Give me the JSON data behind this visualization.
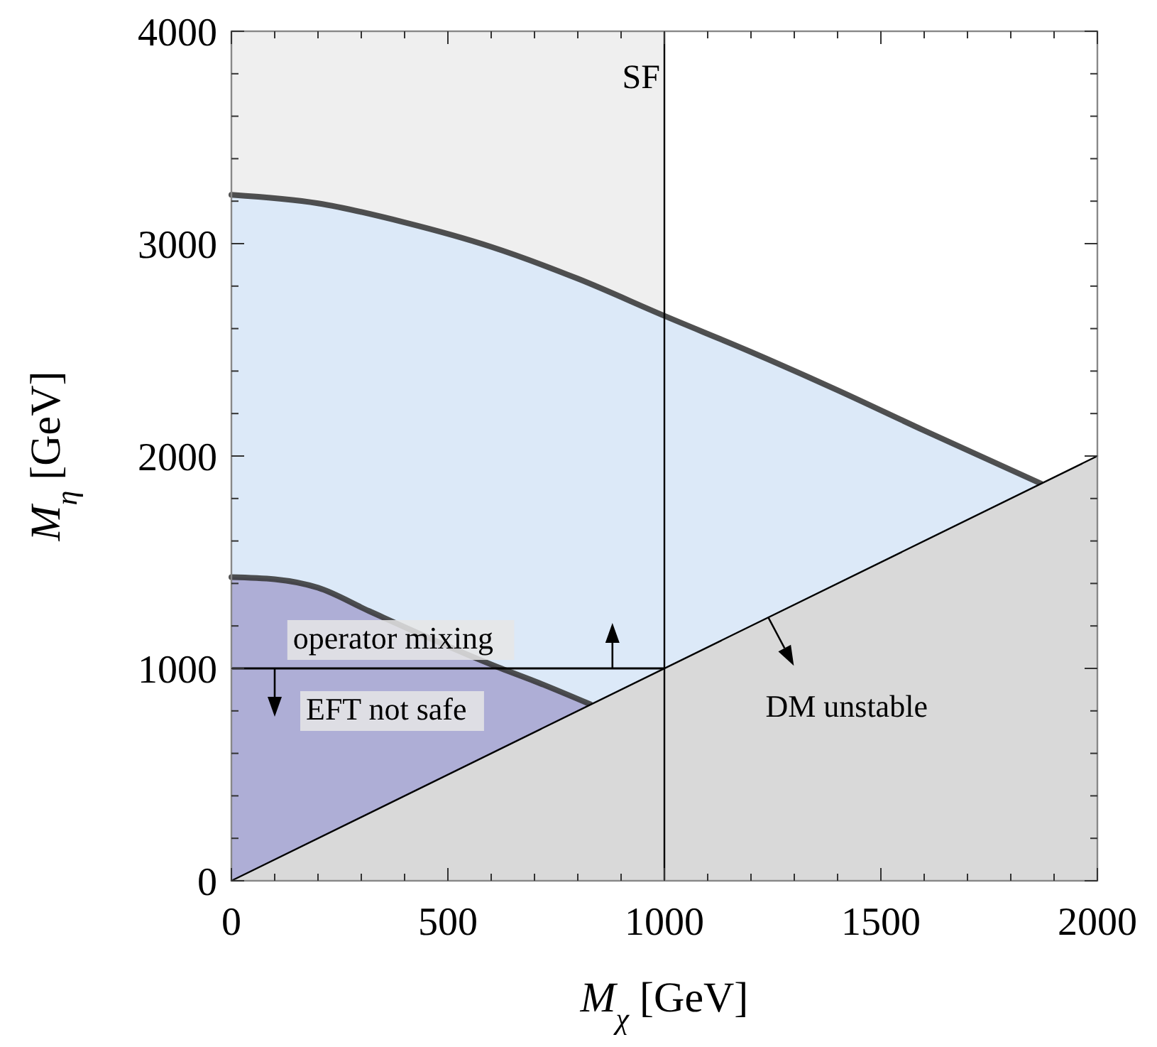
{
  "chart_data": {
    "type": "area",
    "xlabel": "M$_{χ}$ [GeV]",
    "ylabel": "M$_{η}$ [GeV]",
    "xlim": [
      0,
      2000
    ],
    "ylim": [
      0,
      4000
    ],
    "xticks": [
      0,
      {
        "value": 100,
        "label": null
      },
      {
        "value": 200,
        "label": null
      },
      {
        "value": 300,
        "label": null
      },
      {
        "value": 400,
        "label": null
      },
      500,
      {
        "value": 600,
        "label": null
      },
      {
        "value": 700,
        "label": null
      },
      {
        "value": 800,
        "label": null
      },
      {
        "value": 900,
        "label": null
      },
      1000,
      {
        "value": 1100,
        "label": null
      },
      {
        "value": 1200,
        "label": null
      },
      {
        "value": 1300,
        "label": null
      },
      {
        "value": 1400,
        "label": null
      },
      1500,
      {
        "value": 1600,
        "label": null
      },
      {
        "value": 1700,
        "label": null
      },
      {
        "value": 1800,
        "label": null
      },
      {
        "value": 1900,
        "label": null
      },
      2000
    ],
    "yticks": [
      0,
      {
        "value": 200,
        "label": null
      },
      {
        "value": 400,
        "label": null
      },
      {
        "value": 600,
        "label": null
      },
      {
        "value": 800,
        "label": null
      },
      1000,
      {
        "value": 1200,
        "label": null
      },
      {
        "value": 1400,
        "label": null
      },
      {
        "value": 1600,
        "label": null
      },
      {
        "value": 1800,
        "label": null
      },
      2000,
      {
        "value": 2200,
        "label": null
      },
      {
        "value": 2400,
        "label": null
      },
      {
        "value": 2600,
        "label": null
      },
      {
        "value": 2800,
        "label": null
      },
      3000,
      {
        "value": 3200,
        "label": null
      },
      {
        "value": 3400,
        "label": null
      },
      {
        "value": 3600,
        "label": null
      },
      {
        "value": 3800,
        "label": null
      },
      4000
    ],
    "bands": [
      {
        "axis": "x",
        "from": 0,
        "to": 1000,
        "label": "SF",
        "color": "#efefef"
      }
    ],
    "ref_lines": [
      {
        "axis": "x",
        "value": 1000,
        "color": "#000000"
      }
    ],
    "series": [
      {
        "color": "#dce9f8",
        "x": [
          0,
          200,
          400,
          600,
          800,
          1000,
          1200,
          1400,
          1600,
          1870
        ],
        "values": [
          3230,
          3190,
          3100,
          2985,
          2835,
          2660,
          2490,
          2310,
          2120,
          1870
        ]
      },
      {
        "color": "#aeaed6",
        "x": [
          0,
          100,
          200,
          318,
          623,
          700,
          830
        ],
        "values": [
          1430,
          1420,
          1380,
          1270,
          1000,
          940,
          830
        ]
      },
      {
        "color": "#d9d9d9",
        "x": [
          0,
          2000
        ],
        "values": [
          0,
          2000
        ]
      },
      {
        "type": "line",
        "color": "#000000",
        "x": [
          0,
          1000
        ],
        "values": [
          1000,
          1000
        ]
      }
    ],
    "annotations": [
      "operator mixing",
      "EFT not safe",
      "DM unstable"
    ],
    "grid": false,
    "marker": "none"
  }
}
